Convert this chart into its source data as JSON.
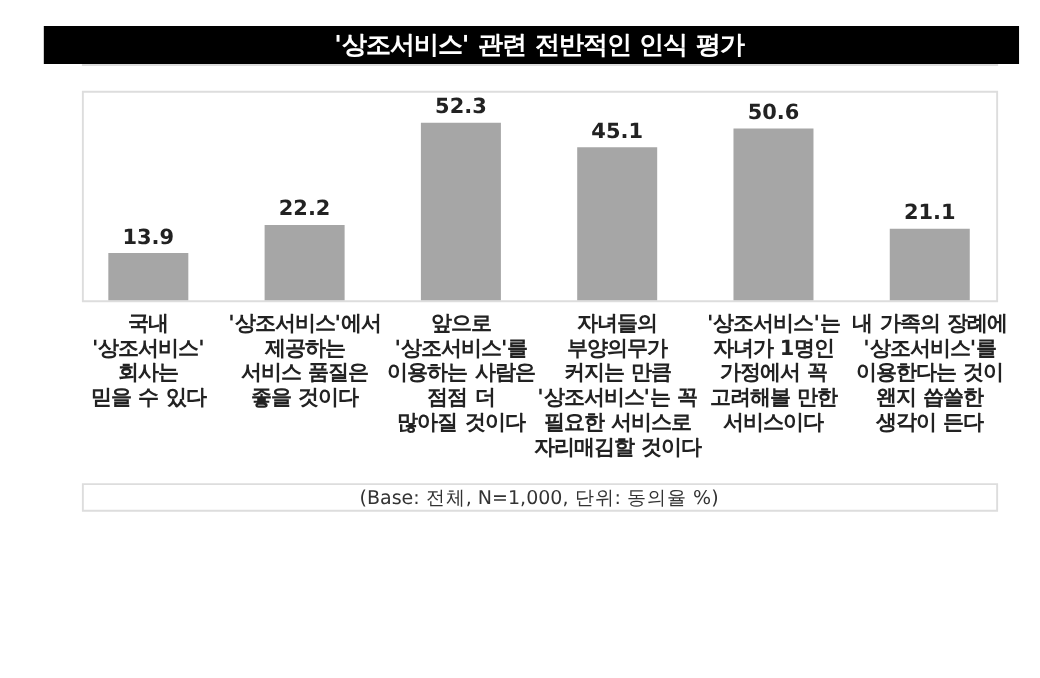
{
  "chart_data": {
    "type": "bar",
    "title": "'상조서비스' 관련 전반적인 인식 평가",
    "categories": [
      "국내\n'상조서비스'\n회사는\n믿을 수 있다",
      "'상조서비스'에서\n제공하는\n서비스 품질은\n좋을 것이다",
      "앞으로\n'상조서비스'를\n이용하는 사람은\n점점 더\n많아질 것이다",
      "자녀들의\n부양의무가\n커지는 만큼\n'상조서비스'는 꼭\n필요한 서비스로\n자리매김할 것이다",
      "'상조서비스'는\n자녀가 1명인\n가정에서 꼭\n고려해볼 만한\n서비스이다",
      "내 가족의 장례에\n'상조서비스'를\n이용한다는 것이\n왠지 씁쓸한\n생각이 든다"
    ],
    "values": [
      13.9,
      22.2,
      52.3,
      45.1,
      50.6,
      21.1
    ],
    "color": "#a6a6a6",
    "data_labels": true,
    "annotations": [
      "(Base: 전체, N=1,000, 단위: 동의율 %)"
    ]
  }
}
